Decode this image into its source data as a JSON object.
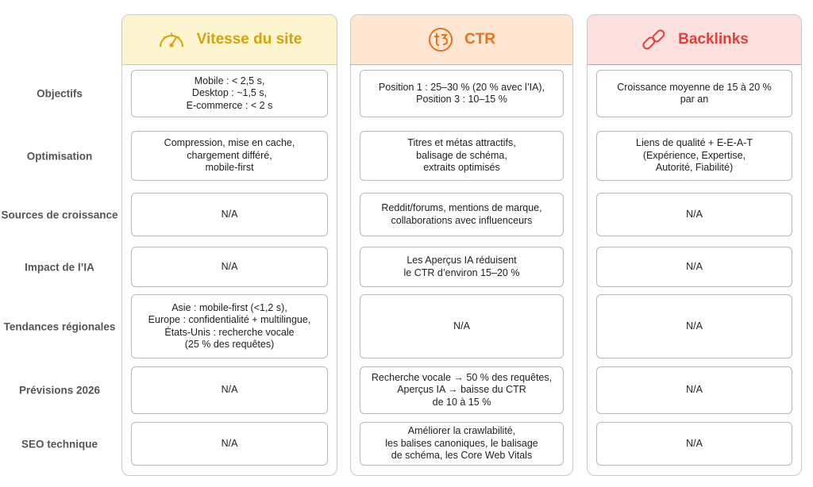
{
  "columns": [
    {
      "title": "Vitesse du site"
    },
    {
      "title": "CTR"
    },
    {
      "title": "Backlinks"
    }
  ],
  "rows": [
    {
      "label": "Objectifs",
      "cells": [
        "Mobile : < 2,5 s,\nDesktop : ~1,5 s,\nE-commerce : < 2 s",
        "Position 1 : 25–30 % (20 % avec l’IA),\nPosition 3 : 10–15 %",
        "Croissance moyenne de 15 à 20 %\npar an"
      ]
    },
    {
      "label": "Optimisation",
      "cells": [
        "Compression, mise en cache,\nchargement différé,\nmobile-first",
        "Titres et métas attractifs,\nbalisage de schéma,\nextraits optimisés",
        "Liens de qualité + E-E-A-T\n(Expérience, Expertise,\nAutorité, Fiabilité)"
      ]
    },
    {
      "label": "Sources de croissance",
      "cells": [
        "N/A",
        "Reddit/forums, mentions de marque,\ncollaborations avec influenceurs",
        "N/A"
      ]
    },
    {
      "label": "Impact de l’IA",
      "cells": [
        "N/A",
        "Les Aperçus IA réduisent\nle CTR d’environ 15–20 %",
        "N/A"
      ]
    },
    {
      "label": "Tendances régionales",
      "cells": [
        "Asie : mobile-first (<1,2 s),\nEurope : confidentialité + multilingue,\nÉtats-Unis : recherche vocale\n(25 % des requêtes)",
        "N/A",
        "N/A"
      ]
    },
    {
      "label": "Prévisions 2026",
      "cells": [
        "N/A",
        "Recherche vocale → 50 % des requêtes,\nAperçus IA → baisse du CTR\nde 10 à 15 %",
        "N/A"
      ]
    },
    {
      "label": "SEO technique",
      "cells": [
        "N/A",
        "Améliorer la crawlabilité,\nles balises canoniques, le balisage\nde schéma, les Core Web Vitals",
        "N/A"
      ]
    }
  ]
}
